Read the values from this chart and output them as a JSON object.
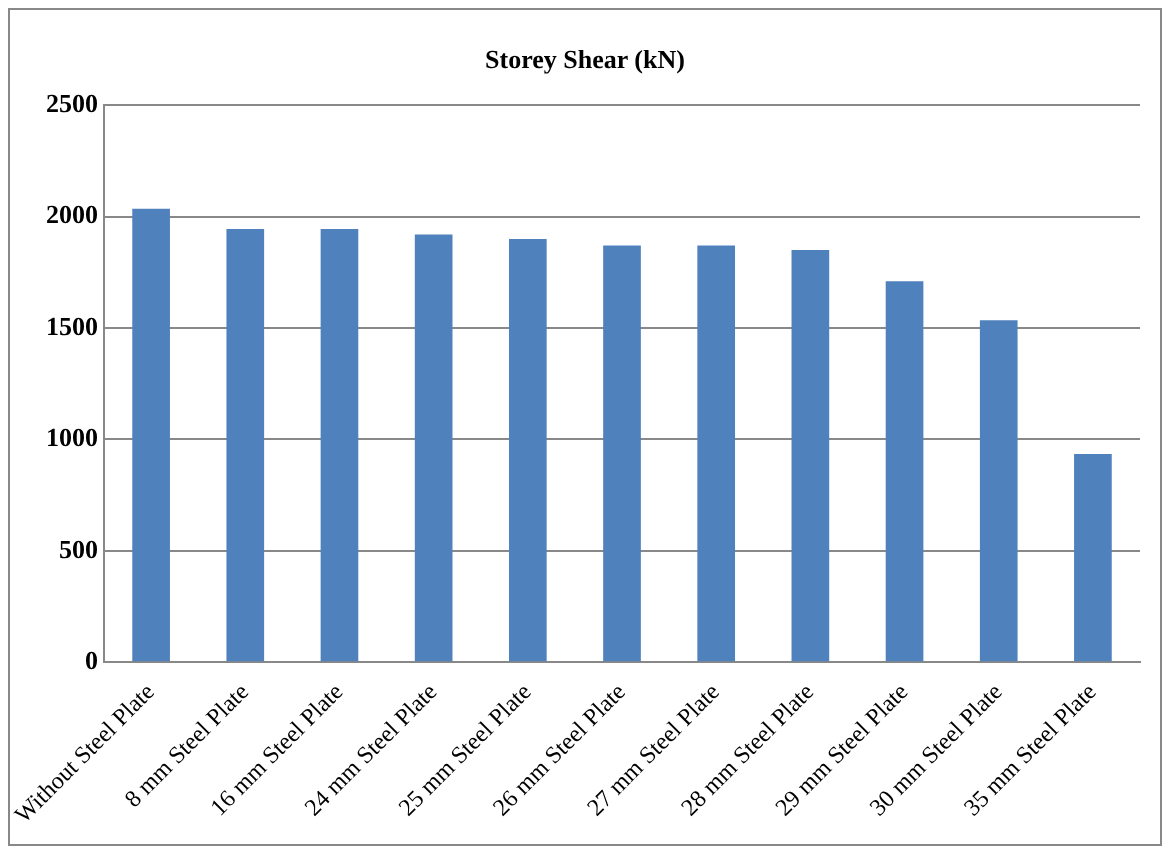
{
  "chart_data": {
    "type": "bar",
    "title": "Storey Shear (kN)",
    "categories": [
      "Without Steel Plate",
      "8 mm Steel Plate",
      "16 mm Steel Plate",
      "24 mm Steel Plate",
      "25 mm Steel Plate",
      "26 mm Steel Plate",
      "27 mm Steel Plate",
      "28 mm Steel Plate",
      "29 mm Steel Plate",
      "30 mm Steel Plate",
      "35 mm Steel Plate"
    ],
    "values": [
      2035,
      1945,
      1945,
      1920,
      1900,
      1870,
      1870,
      1850,
      1710,
      1535,
      935
    ],
    "color": "#4f81bd",
    "ylim": [
      0,
      2500
    ],
    "yticks": [
      0,
      500,
      1000,
      1500,
      2000,
      2500
    ],
    "grid": "y"
  }
}
